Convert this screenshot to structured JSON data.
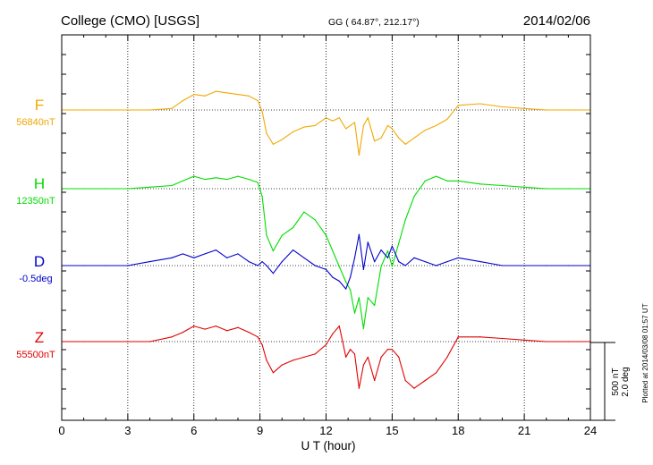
{
  "header": {
    "station": "College (CMO)  [USGS]",
    "coords": "GG ( 64.87°, 212.17°)",
    "date": "2014/02/06"
  },
  "side_labels": {
    "plotted": "Plotted at 2014/03/08 01:57 UT",
    "scale_nt": "500 nT",
    "scale_deg": "2.0 deg"
  },
  "colors": {
    "F": "#f0a800",
    "H": "#00dd00",
    "D": "#0000cc",
    "Z": "#e00000"
  },
  "chart_data": {
    "type": "line",
    "title": "College (CMO)  [USGS]",
    "xlabel": "U T (hour)",
    "ylabel": "",
    "xlim": [
      0,
      24
    ],
    "x_ticks": [
      0,
      3,
      6,
      9,
      12,
      15,
      18,
      21,
      24
    ],
    "x_tick_labels": [
      "0",
      "3",
      "6",
      "9",
      "12",
      "15",
      "18",
      "21",
      "24"
    ],
    "grid": true,
    "scale": {
      "nT_per_bar": 500,
      "deg_per_bar": 2.0
    },
    "series": [
      {
        "name": "F",
        "baseline_label": "56840nT",
        "unit": "nT",
        "x": [
          0,
          1,
          2,
          3,
          4,
          5,
          5.5,
          6,
          6.5,
          7,
          7.5,
          8,
          8.5,
          8.9,
          9.1,
          9.3,
          9.6,
          10,
          10.5,
          11,
          11.5,
          12,
          12.3,
          12.6,
          12.9,
          13.1,
          13.3,
          13.5,
          13.7,
          13.9,
          14.2,
          14.5,
          14.8,
          15,
          15.3,
          15.6,
          16,
          16.5,
          17,
          17.5,
          18,
          19,
          20,
          21,
          22,
          23,
          24
        ],
        "values": [
          0,
          0,
          0,
          0,
          0,
          10,
          60,
          100,
          90,
          120,
          110,
          100,
          90,
          60,
          -10,
          -150,
          -220,
          -190,
          -140,
          -110,
          -100,
          -50,
          -70,
          -50,
          -120,
          -100,
          -80,
          -290,
          -100,
          -50,
          -200,
          -180,
          -100,
          -120,
          -180,
          -220,
          -180,
          -130,
          -100,
          -60,
          30,
          40,
          20,
          10,
          0,
          0,
          0
        ]
      },
      {
        "name": "H",
        "baseline_label": "12350nT",
        "unit": "nT",
        "x": [
          0,
          1,
          2,
          3,
          4,
          5,
          5.5,
          6,
          6.5,
          7,
          7.5,
          8,
          8.5,
          8.9,
          9.1,
          9.3,
          9.6,
          10,
          10.5,
          11,
          11.5,
          12,
          12.3,
          12.6,
          12.9,
          13.1,
          13.3,
          13.5,
          13.7,
          13.9,
          14.2,
          14.5,
          14.8,
          15,
          15.3,
          15.6,
          16,
          16.5,
          17,
          17.5,
          18,
          19,
          20,
          21,
          22,
          23,
          24
        ],
        "values": [
          0,
          0,
          0,
          0,
          10,
          20,
          50,
          80,
          60,
          70,
          60,
          80,
          60,
          40,
          -50,
          -300,
          -400,
          -300,
          -250,
          -150,
          -200,
          -300,
          -400,
          -500,
          -600,
          -650,
          -800,
          -700,
          -900,
          -700,
          -750,
          -500,
          -400,
          -500,
          -350,
          -200,
          -50,
          50,
          80,
          50,
          50,
          30,
          20,
          10,
          0,
          0,
          0
        ]
      },
      {
        "name": "D",
        "baseline_label": "-0.5deg",
        "unit": "deg",
        "x": [
          0,
          1,
          2,
          3,
          4,
          5,
          5.5,
          6,
          6.5,
          7,
          7.5,
          8,
          8.5,
          8.9,
          9.1,
          9.3,
          9.6,
          10,
          10.5,
          11,
          11.5,
          12,
          12.3,
          12.6,
          12.9,
          13.1,
          13.3,
          13.5,
          13.7,
          13.9,
          14.2,
          14.5,
          14.8,
          15,
          15.3,
          15.6,
          16,
          16.5,
          17,
          17.5,
          18,
          19,
          20,
          21,
          22,
          23,
          24
        ],
        "values": [
          0,
          0,
          0,
          0,
          0.1,
          0.2,
          0.3,
          0.2,
          0.3,
          0.4,
          0.2,
          0.3,
          0.1,
          0,
          0.1,
          0,
          -0.2,
          0.1,
          0.4,
          0.2,
          0,
          -0.1,
          -0.3,
          -0.4,
          -0.6,
          -0.3,
          0.2,
          0.8,
          -0.1,
          0.6,
          0.1,
          0.4,
          0.2,
          0.5,
          0.1,
          0,
          0.2,
          0.1,
          0,
          0.1,
          0.2,
          0.1,
          0,
          0,
          0,
          0,
          0
        ]
      },
      {
        "name": "Z",
        "baseline_label": "55500nT",
        "unit": "nT",
        "x": [
          0,
          1,
          2,
          3,
          4,
          5,
          5.5,
          6,
          6.5,
          7,
          7.5,
          8,
          8.5,
          8.9,
          9.1,
          9.3,
          9.6,
          10,
          10.5,
          11,
          11.5,
          12,
          12.3,
          12.6,
          12.9,
          13.1,
          13.3,
          13.5,
          13.7,
          13.9,
          14.2,
          14.5,
          14.8,
          15,
          15.3,
          15.6,
          16,
          16.5,
          17,
          17.5,
          18,
          19,
          20,
          21,
          22,
          23,
          24
        ],
        "values": [
          0,
          0,
          0,
          0,
          0,
          30,
          60,
          100,
          80,
          100,
          70,
          90,
          60,
          30,
          -20,
          -120,
          -200,
          -150,
          -120,
          -100,
          -80,
          -20,
          50,
          100,
          -100,
          -50,
          -80,
          -300,
          -150,
          -100,
          -250,
          -100,
          -50,
          -50,
          -100,
          -250,
          -300,
          -250,
          -200,
          -100,
          30,
          30,
          20,
          10,
          0,
          0,
          0
        ]
      }
    ]
  }
}
